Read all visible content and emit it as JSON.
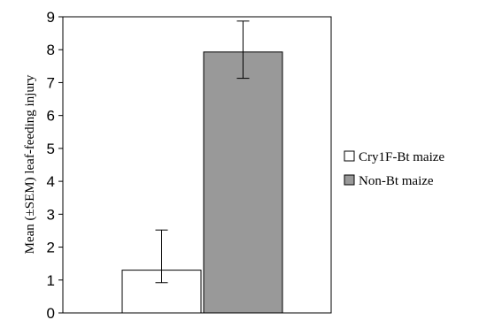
{
  "chart_data": {
    "type": "bar",
    "title": "",
    "xlabel": "",
    "ylabel": "Mean (±SEM) leaf-feeding injury",
    "ylim": [
      0,
      9
    ],
    "yticks": [
      "0",
      "1",
      "2",
      "3",
      "4",
      "5",
      "6",
      "7",
      "8",
      "9"
    ],
    "grid": false,
    "legend_position": "right",
    "series": [
      {
        "name": "Cry1F-Bt maize",
        "value": 1.3,
        "err_low": 0.92,
        "err_high": 2.52,
        "color": "#ffffff"
      },
      {
        "name": "Non-Bt maize",
        "value": 7.93,
        "err_low": 7.13,
        "err_high": 8.87,
        "color": "#999999"
      }
    ]
  }
}
